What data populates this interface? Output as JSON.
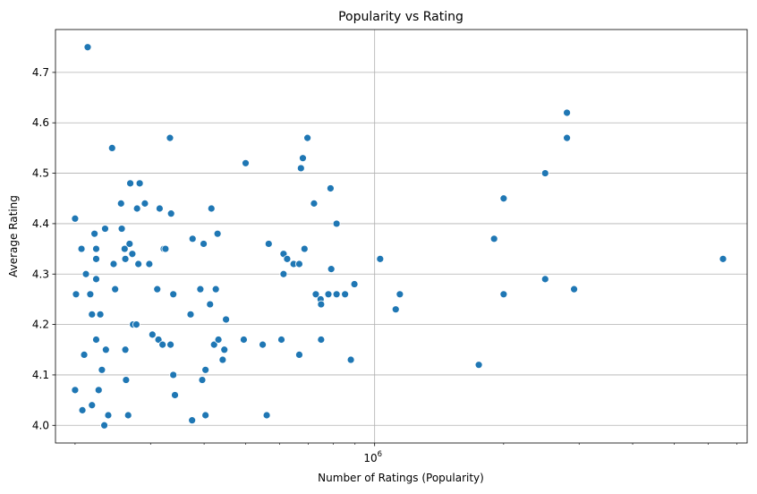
{
  "chart_data": {
    "type": "scatter",
    "title": "Popularity vs Rating",
    "xlabel": "Number of Ratings (Popularity)",
    "ylabel": "Average Rating",
    "xscale": "log",
    "xlim": [
      180000,
      7400000
    ],
    "ylim": [
      3.965,
      4.785
    ],
    "x_tick_labels": [
      {
        "value": 1000000,
        "base": "10",
        "exp": "6"
      }
    ],
    "y_ticks": [
      {
        "value": 4.0,
        "label": "4.0"
      },
      {
        "value": 4.1,
        "label": "4.1"
      },
      {
        "value": 4.2,
        "label": "4.2"
      },
      {
        "value": 4.3,
        "label": "4.3"
      },
      {
        "value": 4.4,
        "label": "4.4"
      },
      {
        "value": 4.5,
        "label": "4.5"
      },
      {
        "value": 4.6,
        "label": "4.6"
      },
      {
        "value": 4.7,
        "label": "4.7"
      }
    ],
    "grid": true,
    "colors": {
      "marker": "#1f77b4",
      "grid": "#b0b0b0",
      "axes": "#000000"
    },
    "points": [
      [
        214000,
        4.75
      ],
      [
        200000,
        4.41
      ],
      [
        201000,
        4.26
      ],
      [
        200000,
        4.07
      ],
      [
        207000,
        4.35
      ],
      [
        208000,
        4.03
      ],
      [
        210000,
        4.14
      ],
      [
        212000,
        4.3
      ],
      [
        217000,
        4.26
      ],
      [
        219000,
        4.22
      ],
      [
        219000,
        4.04
      ],
      [
        222000,
        4.38
      ],
      [
        224000,
        4.35
      ],
      [
        224000,
        4.33
      ],
      [
        224000,
        4.29
      ],
      [
        224000,
        4.17
      ],
      [
        227000,
        4.07
      ],
      [
        229000,
        4.22
      ],
      [
        231000,
        4.11
      ],
      [
        234000,
        4.0
      ],
      [
        235000,
        4.39
      ],
      [
        236000,
        4.15
      ],
      [
        239000,
        4.02
      ],
      [
        244000,
        4.55
      ],
      [
        246000,
        4.32
      ],
      [
        248000,
        4.27
      ],
      [
        256000,
        4.44
      ],
      [
        257000,
        4.39
      ],
      [
        261000,
        4.35
      ],
      [
        262000,
        4.33
      ],
      [
        262000,
        4.15
      ],
      [
        263000,
        4.09
      ],
      [
        266000,
        4.02
      ],
      [
        268000,
        4.36
      ],
      [
        269000,
        4.48
      ],
      [
        272000,
        4.34
      ],
      [
        273000,
        4.2
      ],
      [
        278000,
        4.2
      ],
      [
        279000,
        4.43
      ],
      [
        281000,
        4.32
      ],
      [
        283000,
        4.48
      ],
      [
        291000,
        4.44
      ],
      [
        298000,
        4.32
      ],
      [
        303000,
        4.18
      ],
      [
        311000,
        4.27
      ],
      [
        313000,
        4.17
      ],
      [
        315000,
        4.43
      ],
      [
        320000,
        4.16
      ],
      [
        322000,
        4.35
      ],
      [
        325000,
        4.35
      ],
      [
        333000,
        4.57
      ],
      [
        335000,
        4.42
      ],
      [
        334000,
        4.16
      ],
      [
        339000,
        4.26
      ],
      [
        339000,
        4.1
      ],
      [
        342000,
        4.06
      ],
      [
        372000,
        4.22
      ],
      [
        376000,
        4.37
      ],
      [
        375000,
        4.01
      ],
      [
        392000,
        4.27
      ],
      [
        396000,
        4.09
      ],
      [
        399000,
        4.36
      ],
      [
        403000,
        4.11
      ],
      [
        403000,
        4.02
      ],
      [
        413000,
        4.24
      ],
      [
        416000,
        4.43
      ],
      [
        422000,
        4.16
      ],
      [
        426000,
        4.27
      ],
      [
        430000,
        4.38
      ],
      [
        432000,
        4.17
      ],
      [
        442000,
        4.13
      ],
      [
        446000,
        4.15
      ],
      [
        450000,
        4.21
      ],
      [
        495000,
        4.17
      ],
      [
        500000,
        4.52
      ],
      [
        548000,
        4.16
      ],
      [
        560000,
        4.02
      ],
      [
        566000,
        4.36
      ],
      [
        606000,
        4.17
      ],
      [
        613000,
        4.34
      ],
      [
        613000,
        4.3
      ],
      [
        625000,
        4.33
      ],
      [
        647000,
        4.32
      ],
      [
        667000,
        4.14
      ],
      [
        667000,
        4.32
      ],
      [
        673000,
        4.51
      ],
      [
        680000,
        4.53
      ],
      [
        686000,
        4.35
      ],
      [
        697000,
        4.57
      ],
      [
        722000,
        4.44
      ],
      [
        729000,
        4.26
      ],
      [
        748000,
        4.25
      ],
      [
        750000,
        4.24
      ],
      [
        750000,
        4.17
      ],
      [
        780000,
        4.26
      ],
      [
        789000,
        4.47
      ],
      [
        792000,
        4.31
      ],
      [
        815000,
        4.4
      ],
      [
        815000,
        4.26
      ],
      [
        853000,
        4.26
      ],
      [
        880000,
        4.13
      ],
      [
        897000,
        4.28
      ],
      [
        1030000,
        4.33
      ],
      [
        1120000,
        4.23
      ],
      [
        1145000,
        4.26
      ],
      [
        1750000,
        4.12
      ],
      [
        1900000,
        4.37
      ],
      [
        2000000,
        4.45
      ],
      [
        2000000,
        4.26
      ],
      [
        2500000,
        4.5
      ],
      [
        2500000,
        4.29
      ],
      [
        2810000,
        4.62
      ],
      [
        2810000,
        4.57
      ],
      [
        2920000,
        4.27
      ],
      [
        6500000,
        4.33
      ]
    ]
  }
}
